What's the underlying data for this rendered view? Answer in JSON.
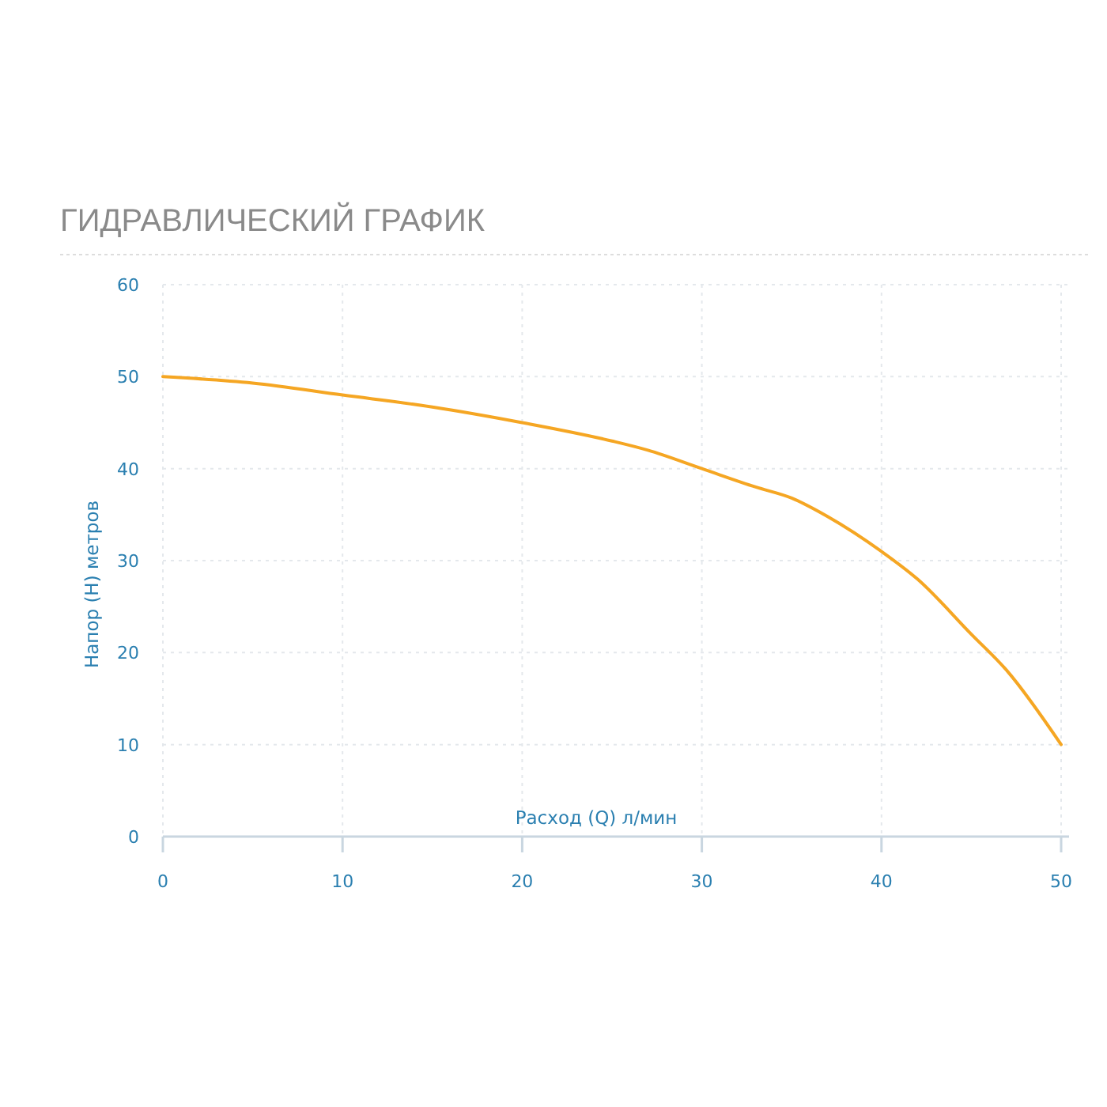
{
  "chart_data": {
    "type": "line",
    "title": "ГИДРАВЛИЧЕСКИЙ ГРАФИК",
    "xlabel": "Расход (Q) л/мин",
    "ylabel": "Напор (H) метров",
    "x": [
      0,
      5,
      10,
      15,
      20,
      25,
      27,
      30,
      33,
      35,
      37,
      40,
      42,
      45,
      47,
      50
    ],
    "series": [
      {
        "color": "#f5a623",
        "values": [
          50,
          49.3,
          48,
          46.7,
          45,
          43,
          42,
          40,
          38,
          36.8,
          34.8,
          31,
          28,
          22,
          18,
          10
        ]
      }
    ],
    "xlim": [
      0,
      50
    ],
    "xticks": [
      0,
      10,
      20,
      30,
      40,
      50
    ],
    "ylim": [
      0,
      60
    ],
    "yticks": [
      0,
      10,
      20,
      30,
      40,
      50,
      60
    ],
    "grid": true,
    "marker": "none",
    "line_style": "solid"
  }
}
